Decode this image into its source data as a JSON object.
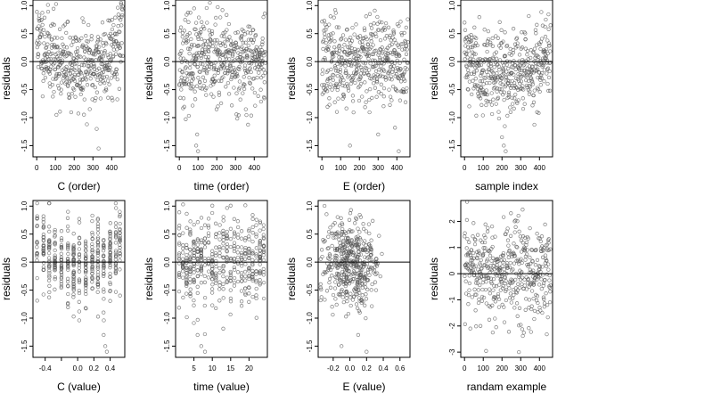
{
  "chart_data": [
    {
      "type": "scatter",
      "xlabel": "C (order)",
      "ylabel": "residuals",
      "xlim": [
        -20,
        470
      ],
      "ylim": [
        -1.7,
        1.1
      ],
      "xticks": [
        0,
        100,
        200,
        300,
        400
      ],
      "xtick_labels": [
        "0",
        "100",
        "200",
        "300",
        "400"
      ],
      "yticks": [
        -1.5,
        -1.0,
        -0.5,
        0.0,
        0.5,
        1.0
      ],
      "ytick_labels": [
        "-1.5",
        "-1.0",
        "-0.5",
        "0.0",
        "0.5",
        "1.0"
      ],
      "reference_line_y": 0,
      "n_points": 460,
      "x_mode": "order",
      "seed": 11,
      "style": "u_shape",
      "outliers": [
        [
          105,
          -0.95
        ],
        [
          320,
          -1.2
        ],
        [
          330,
          -1.55
        ]
      ]
    },
    {
      "type": "scatter",
      "xlabel": "time (order)",
      "ylabel": "residuals",
      "xlim": [
        -20,
        470
      ],
      "ylim": [
        -1.7,
        1.1
      ],
      "xticks": [
        0,
        100,
        200,
        300,
        400
      ],
      "xtick_labels": [
        "0",
        "100",
        "200",
        "300",
        "400"
      ],
      "yticks": [
        -1.5,
        -1.0,
        -0.5,
        0.0,
        0.5,
        1.0
      ],
      "ytick_labels": [
        "-1.5",
        "-1.0",
        "-0.5",
        "0.0",
        "0.5",
        "1.0"
      ],
      "reference_line_y": 0,
      "n_points": 460,
      "x_mode": "order",
      "seed": 23,
      "style": "flat",
      "outliers": [
        [
          90,
          -1.5
        ],
        [
          95,
          -1.3
        ],
        [
          100,
          -1.6
        ]
      ]
    },
    {
      "type": "scatter",
      "xlabel": "E (order)",
      "ylabel": "residuals",
      "xlim": [
        -20,
        470
      ],
      "ylim": [
        -1.7,
        1.1
      ],
      "xticks": [
        0,
        100,
        200,
        300,
        400
      ],
      "xtick_labels": [
        "0",
        "100",
        "200",
        "300",
        "400"
      ],
      "yticks": [
        -1.5,
        -1.0,
        -0.5,
        0.0,
        0.5,
        1.0
      ],
      "ytick_labels": [
        "-1.5",
        "-1.0",
        "-0.5",
        "0.0",
        "0.5",
        "1.0"
      ],
      "reference_line_y": 0,
      "n_points": 460,
      "x_mode": "order",
      "seed": 37,
      "style": "flat",
      "outliers": [
        [
          150,
          -1.5
        ],
        [
          300,
          -1.3
        ],
        [
          410,
          -1.6
        ]
      ]
    },
    {
      "type": "scatter",
      "xlabel": "sample index",
      "ylabel": "residuals",
      "xlim": [
        -20,
        470
      ],
      "ylim": [
        -1.7,
        1.1
      ],
      "xticks": [
        0,
        100,
        200,
        300,
        400
      ],
      "xtick_labels": [
        "0",
        "100",
        "200",
        "300",
        "400"
      ],
      "yticks": [
        -1.5,
        -1.0,
        -0.5,
        0.0,
        0.5,
        1.0
      ],
      "ytick_labels": [
        "-1.5",
        "-1.0",
        "-0.5",
        "0.0",
        "0.5",
        "1.0"
      ],
      "reference_line_y": 0,
      "n_points": 460,
      "x_mode": "order",
      "seed": 41,
      "style": "dip",
      "outliers": [
        [
          200,
          -1.35
        ],
        [
          210,
          -1.5
        ],
        [
          220,
          -1.6
        ]
      ]
    },
    {
      "type": "scatter",
      "xlabel": "C (value)",
      "ylabel": "residuals",
      "xlim": [
        -0.55,
        0.58
      ],
      "ylim": [
        -1.7,
        1.1
      ],
      "xticks": [
        -0.4,
        -0.2,
        0.0,
        0.2,
        0.4
      ],
      "xtick_labels": [
        "-0.4",
        "",
        "0.0",
        "0.2",
        "0.4"
      ],
      "yticks": [
        -1.5,
        -1.0,
        -0.5,
        0.0,
        0.5,
        1.0
      ],
      "ytick_labels": [
        "-1.5",
        "-1.0",
        "-0.5",
        "0.0",
        "0.5",
        "1.0"
      ],
      "reference_line_y": 0,
      "n_points": 460,
      "x_mode": "columns",
      "columns": [
        -0.5,
        -0.42,
        -0.35,
        -0.28,
        -0.2,
        -0.12,
        -0.05,
        0.02,
        0.1,
        0.18,
        0.25,
        0.32,
        0.4,
        0.47,
        0.52
      ],
      "seed": 53,
      "style": "u_shape",
      "outliers": [
        [
          0.32,
          -1.3
        ],
        [
          0.34,
          -1.5
        ],
        [
          0.36,
          -1.6
        ]
      ]
    },
    {
      "type": "scatter",
      "xlabel": "time (value)",
      "ylabel": "residuals",
      "xlim": [
        0,
        25
      ],
      "ylim": [
        -1.7,
        1.1
      ],
      "xticks": [
        5,
        10,
        15,
        20
      ],
      "xtick_labels": [
        "5",
        "10",
        "15",
        "20"
      ],
      "yticks": [
        -1.5,
        -1.0,
        -0.5,
        0.0,
        0.5,
        1.0
      ],
      "ytick_labels": [
        "-1.5",
        "-1.0",
        "-0.5",
        "0.0",
        "0.5",
        "1.0"
      ],
      "reference_line_y": 0,
      "n_points": 460,
      "x_mode": "columns",
      "columns": [
        1,
        2,
        3,
        4,
        5,
        6,
        7,
        8,
        9,
        10,
        11,
        12,
        13,
        14,
        15,
        16,
        17,
        18,
        19,
        20,
        21,
        22,
        23,
        24
      ],
      "seed": 67,
      "style": "flat",
      "outliers": [
        [
          6,
          -1.3
        ],
        [
          7,
          -1.5
        ],
        [
          8,
          -1.6
        ]
      ]
    },
    {
      "type": "scatter",
      "xlabel": "E (value)",
      "ylabel": "residuals",
      "xlim": [
        -0.38,
        0.72
      ],
      "ylim": [
        -1.7,
        1.1
      ],
      "xticks": [
        -0.2,
        0.0,
        0.2,
        0.4,
        0.6
      ],
      "xtick_labels": [
        "-0.2",
        "0.0",
        "0.2",
        "0.4",
        "0.6"
      ],
      "yticks": [
        -1.5,
        -1.0,
        -0.5,
        0.0,
        0.5,
        1.0
      ],
      "ytick_labels": [
        "-1.5",
        "-1.0",
        "-0.5",
        "0.0",
        "0.5",
        "1.0"
      ],
      "reference_line_y": 0,
      "n_points": 460,
      "x_mode": "clustered",
      "x_center": 0.0,
      "x_spread": 0.17,
      "seed": 79,
      "style": "flat",
      "outliers": [
        [
          -0.1,
          -1.5
        ],
        [
          0.1,
          -1.3
        ],
        [
          0.2,
          -1.6
        ]
      ]
    },
    {
      "type": "scatter",
      "xlabel": "randam example",
      "ylabel": "residuals",
      "xlim": [
        -20,
        470
      ],
      "ylim": [
        -3.2,
        2.8
      ],
      "xticks": [
        0,
        100,
        200,
        300,
        400
      ],
      "xtick_labels": [
        "0",
        "100",
        "200",
        "300",
        "400"
      ],
      "yticks": [
        -3,
        -2,
        -1,
        0,
        1,
        2
      ],
      "ytick_labels": [
        "-3",
        "-2",
        "-1",
        "0",
        "1",
        "2"
      ],
      "reference_line_y": 0,
      "n_points": 460,
      "x_mode": "order",
      "seed": 97,
      "style": "normal",
      "outliers": [
        [
          290,
          -3.0
        ]
      ]
    }
  ]
}
